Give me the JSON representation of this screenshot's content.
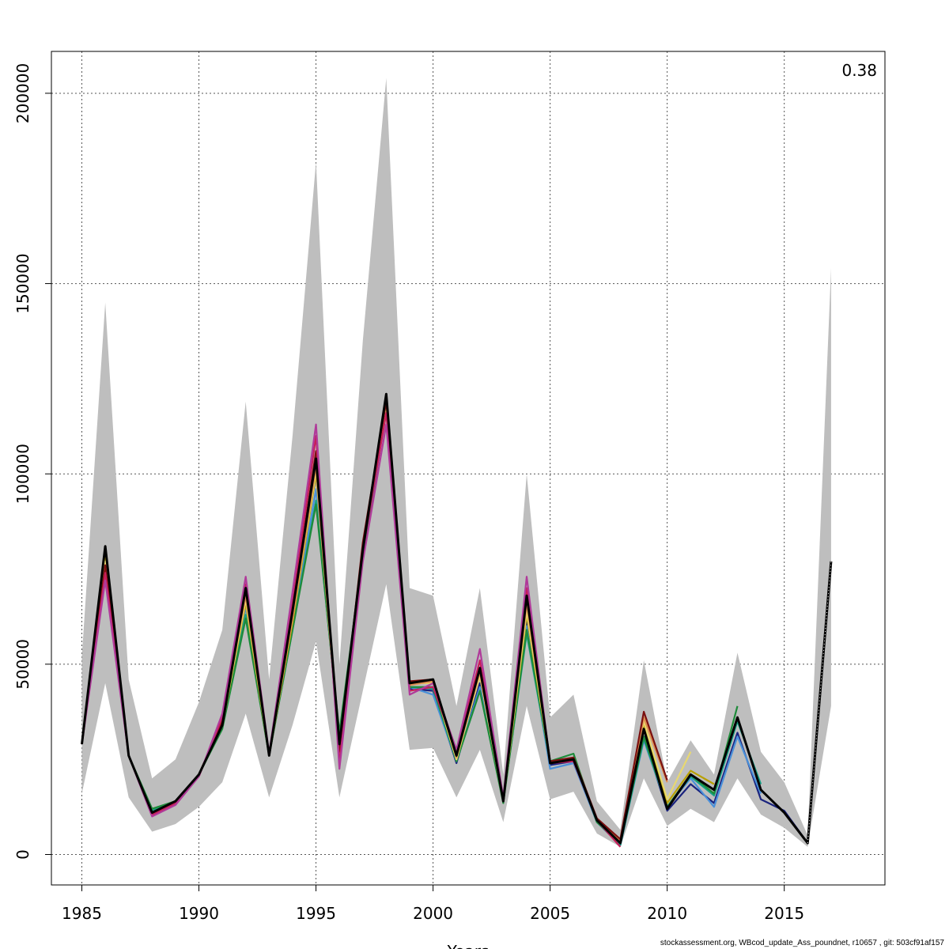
{
  "chart_data": {
    "type": "line",
    "xlabel": "Years",
    "ylabel": "",
    "xlim": [
      1983.7,
      1919.3
    ],
    "ylim": [
      -8000,
      211000
    ],
    "x_ticks": [
      1985,
      1990,
      1995,
      2000,
      2005,
      2010,
      2015
    ],
    "y_ticks": [
      0,
      50000,
      100000,
      150000,
      200000
    ],
    "grid": true,
    "annotation": "0.38",
    "band": {
      "x": [
        1985,
        1986,
        1987,
        1988,
        1989,
        1990,
        1991,
        1992,
        1993,
        1994,
        1995,
        1996,
        1997,
        1998,
        1999,
        2000,
        2001,
        2002,
        2003,
        2004,
        2005,
        2006,
        2007,
        2008,
        2009,
        2010,
        2011,
        2012,
        2013,
        2014,
        2015,
        2016,
        2017
      ],
      "lower": [
        16000,
        45000,
        15000,
        6000,
        8000,
        12500,
        19000,
        37000,
        15000,
        34000,
        56000,
        15000,
        43000,
        71000,
        27500,
        28000,
        15000,
        27500,
        8500,
        39000,
        14500,
        16500,
        5500,
        2000,
        20000,
        7500,
        12000,
        8500,
        20000,
        10500,
        7000,
        2000,
        39000
      ],
      "upper": [
        52000,
        145000,
        46000,
        20000,
        25000,
        40000,
        59000,
        119000,
        46000,
        110000,
        182000,
        50000,
        135000,
        204000,
        70000,
        68000,
        39000,
        70000,
        21000,
        100000,
        36000,
        42000,
        14000,
        6500,
        51000,
        19000,
        30000,
        21000,
        53000,
        27000,
        19000,
        5000,
        154000
      ]
    },
    "series": [
      {
        "color": "#000000",
        "x": [
          1985,
          1986,
          1987,
          1988,
          1989,
          1990,
          1991,
          1992,
          1993,
          1994,
          1995,
          1996,
          1997,
          1998,
          1999,
          2000,
          2001,
          2002,
          2003,
          2004,
          2005,
          2006,
          2007,
          2008,
          2009,
          2010,
          2011,
          2012,
          2013,
          2014,
          2015,
          2016,
          2017
        ],
        "values": [
          29000,
          81000,
          26000,
          11000,
          14000,
          21000,
          34000,
          70000,
          26000,
          64000,
          104000,
          29000,
          80000,
          121000,
          45000,
          46000,
          26000,
          49000,
          14000,
          68000,
          24000,
          25000,
          9000,
          3000,
          33000,
          12000,
          21000,
          17000,
          36000,
          17000,
          11000,
          3000,
          77000
        ]
      },
      {
        "color": "#1a237e",
        "x": [
          1985,
          1986,
          1987,
          1988,
          1989,
          1990,
          1991,
          1992,
          1993,
          1994,
          1995,
          1996,
          1997,
          1998,
          1999,
          2000,
          2001,
          2002,
          2003,
          2004,
          2005,
          2006,
          2007,
          2008,
          2009,
          2010,
          2011,
          2012,
          2013,
          2014,
          2015,
          2016
        ],
        "values": [
          29000,
          80000,
          26000,
          11000,
          13500,
          21000,
          34000,
          70000,
          26000,
          63000,
          100000,
          28000,
          80000,
          120000,
          43500,
          43000,
          24000,
          45000,
          14000,
          62000,
          23500,
          24500,
          8500,
          2500,
          31000,
          11500,
          18500,
          13500,
          32000,
          14500,
          11500,
          3000
        ]
      },
      {
        "color": "#4a90d9",
        "x": [
          1985,
          1986,
          1987,
          1988,
          1989,
          1990,
          1991,
          1992,
          1993,
          1994,
          1995,
          1996,
          1997,
          1998,
          1999,
          2000,
          2001,
          2002,
          2003,
          2004,
          2005,
          2006,
          2007,
          2008,
          2009,
          2010,
          2011,
          2012,
          2013,
          2014
        ],
        "values": [
          29000,
          77000,
          26000,
          10500,
          13500,
          21000,
          33500,
          65000,
          26000,
          60000,
          96000,
          30000,
          78000,
          117000,
          44000,
          42000,
          24500,
          44000,
          14000,
          60000,
          22500,
          24000,
          8500,
          2500,
          30000,
          12500,
          20000,
          12500,
          31000,
          16000
        ]
      },
      {
        "color": "#16a085",
        "x": [
          1985,
          1986,
          1987,
          1988,
          1989,
          1990,
          1991,
          1992,
          1993,
          1994,
          1995,
          1996,
          1997,
          1998,
          1999,
          2000,
          2001,
          2002,
          2003,
          2004,
          2005,
          2006,
          2007,
          2008,
          2009,
          2010,
          2011,
          2012,
          2013,
          2014
        ],
        "values": [
          29000,
          78000,
          26000,
          11500,
          14000,
          21000,
          33500,
          63000,
          26000,
          59000,
          93000,
          31000,
          78000,
          117000,
          44000,
          43500,
          24500,
          43000,
          14000,
          58000,
          24000,
          25500,
          8500,
          2500,
          30500,
          12500,
          20500,
          15500,
          35000,
          18500
        ]
      },
      {
        "color": "#1e8b3a",
        "x": [
          1985,
          1986,
          1987,
          1988,
          1989,
          1990,
          1991,
          1992,
          1993,
          1994,
          1995,
          1996,
          1997,
          1998,
          1999,
          2000,
          2001,
          2002,
          2003,
          2004,
          2005,
          2006,
          2007,
          2008,
          2009,
          2010,
          2011,
          2012,
          2013
        ],
        "values": [
          29000,
          78000,
          26000,
          12000,
          14000,
          21000,
          33000,
          62000,
          26000,
          59000,
          92000,
          32000,
          79000,
          117000,
          44000,
          44000,
          24500,
          43000,
          13500,
          59000,
          24500,
          26500,
          8500,
          3000,
          31000,
          12500,
          21000,
          16000,
          39000
        ]
      },
      {
        "color": "#b8a000",
        "x": [
          1985,
          1986,
          1987,
          1988,
          1989,
          1990,
          1991,
          1992,
          1993,
          1994,
          1995,
          1996,
          1997,
          1998,
          1999,
          2000,
          2001,
          2002,
          2003,
          2004,
          2005,
          2006,
          2007,
          2008,
          2009,
          2010,
          2011,
          2012
        ],
        "values": [
          29000,
          78000,
          26000,
          11000,
          14000,
          21000,
          34000,
          66000,
          26000,
          61000,
          100000,
          29000,
          80000,
          118000,
          45000,
          45500,
          25000,
          47000,
          14000,
          63000,
          24000,
          25000,
          9000,
          3000,
          34000,
          13500,
          22000,
          18500
        ]
      },
      {
        "color": "#e8d870",
        "x": [
          1985,
          1986,
          1987,
          1988,
          1989,
          1990,
          1991,
          1992,
          1993,
          1994,
          1995,
          1996,
          1997,
          1998,
          1999,
          2000,
          2001,
          2002,
          2003,
          2004,
          2005,
          2006,
          2007,
          2008,
          2009,
          2010,
          2011
        ],
        "values": [
          29000,
          77000,
          26000,
          11000,
          14000,
          21000,
          34000,
          67000,
          26000,
          62000,
          101000,
          28000,
          80000,
          118000,
          45000,
          45000,
          25000,
          47000,
          14000,
          64000,
          24000,
          25000,
          9000,
          3000,
          35000,
          14500,
          27000
        ]
      },
      {
        "color": "#e09050",
        "x": [
          1985,
          1986,
          1987,
          1988,
          1989,
          1990,
          1991,
          1992,
          1993,
          1994,
          1995,
          1996,
          1997,
          1998,
          1999,
          2000,
          2001,
          2002,
          2003,
          2004,
          2005,
          2006,
          2007,
          2008,
          2009,
          2010
        ],
        "values": [
          29000,
          76000,
          26000,
          10500,
          13500,
          21000,
          35000,
          68000,
          26000,
          62000,
          102000,
          27000,
          81000,
          119000,
          44500,
          45500,
          25500,
          48000,
          14000,
          66000,
          24000,
          25000,
          9000,
          3500,
          36000,
          19000
        ]
      },
      {
        "color": "#7b1010",
        "x": [
          1985,
          1986,
          1987,
          1988,
          1989,
          1990,
          1991,
          1992,
          1993,
          1994,
          1995,
          1996,
          1997,
          1998,
          1999,
          2000,
          2001,
          2002,
          2003,
          2004,
          2005,
          2006,
          2007,
          2008,
          2009,
          2010
        ],
        "values": [
          29000,
          76000,
          26000,
          10500,
          13500,
          21000,
          35000,
          70000,
          26000,
          64000,
          106000,
          27000,
          82000,
          119000,
          45500,
          46000,
          26000,
          49000,
          14000,
          68000,
          24500,
          25500,
          9500,
          4000,
          37500,
          19500
        ]
      },
      {
        "color": "#c71e5a",
        "x": [
          1985,
          1986,
          1987,
          1988,
          1989,
          1990,
          1991,
          1992,
          1993,
          1994,
          1995,
          1996,
          1997,
          1998,
          1999,
          2000,
          2001,
          2002,
          2003,
          2004,
          2005,
          2006,
          2007,
          2008
        ],
        "values": [
          29000,
          74000,
          26000,
          10500,
          13500,
          20500,
          36000,
          71000,
          26000,
          66000,
          110000,
          24000,
          80000,
          116000,
          43000,
          44000,
          27000,
          51000,
          14500,
          70000,
          24000,
          24500,
          9000,
          2000
        ]
      },
      {
        "color": "#b03a9a",
        "x": [
          1985,
          1986,
          1987,
          1988,
          1989,
          1990,
          1991,
          1992,
          1993,
          1994,
          1995,
          1996,
          1997,
          1998,
          1999,
          2000,
          2001,
          2002,
          2003,
          2004,
          2005
        ],
        "values": [
          29000,
          72000,
          26000,
          10000,
          13000,
          20500,
          37000,
          73000,
          26500,
          69000,
          113000,
          22500,
          77000,
          113000,
          42000,
          45000,
          27500,
          54000,
          15000,
          73000,
          24000
        ]
      }
    ]
  },
  "footer": "stockassessment.org, WBcod_update_Ass_poundnet, r10657 , git: 503cf91af157"
}
